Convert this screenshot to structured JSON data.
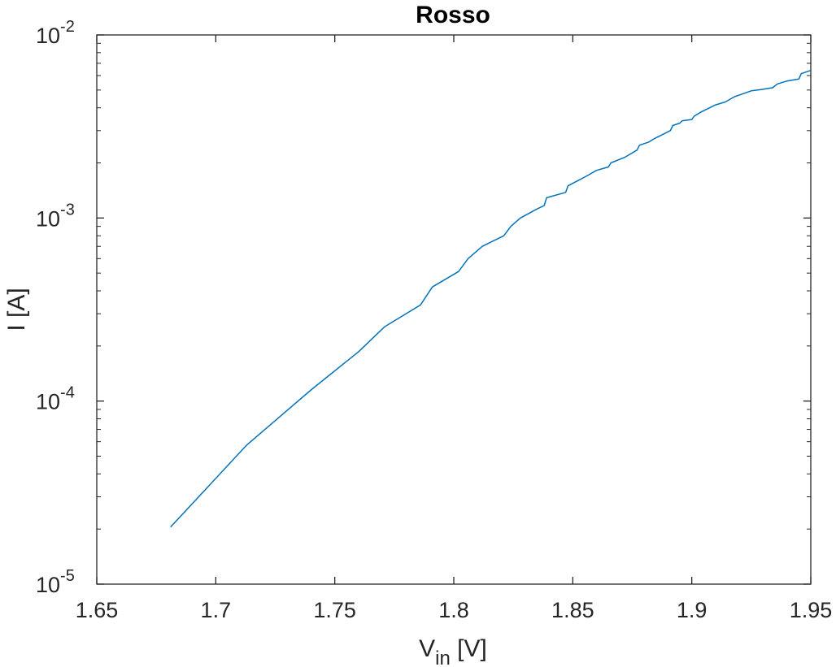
{
  "chart_data": {
    "type": "line",
    "title": "Rosso",
    "xlabel": {
      "main": "V",
      "sub": "in",
      "unit": " [V]"
    },
    "ylabel": "I [A]",
    "xlim": [
      1.65,
      1.95
    ],
    "ylim": [
      1e-05,
      0.01
    ],
    "yscale": "log",
    "grid": false,
    "x_ticks": [
      "1.65",
      "1.7",
      "1.75",
      "1.8",
      "1.85",
      "1.9",
      "1.95"
    ],
    "y_ticks": [
      {
        "base": "10",
        "exp": "-5"
      },
      {
        "base": "10",
        "exp": "-4"
      },
      {
        "base": "10",
        "exp": "-3"
      },
      {
        "base": "10",
        "exp": "-2"
      }
    ],
    "series": [
      {
        "color": "#0072BD",
        "x": [
          1.681,
          1.713,
          1.74,
          1.76,
          1.771,
          1.786,
          1.791,
          1.802,
          1.806,
          1.812,
          1.821,
          1.824,
          1.828,
          1.835,
          1.838,
          1.839,
          1.847,
          1.848,
          1.853,
          1.856,
          1.86,
          1.865,
          1.866,
          1.872,
          1.877,
          1.878,
          1.882,
          1.884,
          1.891,
          1.892,
          1.895,
          1.896,
          1.9,
          1.901,
          1.904,
          1.91,
          1.914,
          1.918,
          1.921,
          1.925,
          1.93,
          1.934,
          1.936,
          1.94,
          1.945,
          1.946,
          1.95
        ],
        "y": [
          2.05e-05,
          5.75e-05,
          0.000115,
          0.000186,
          0.000255,
          0.000335,
          0.00042,
          0.00051,
          0.0006,
          0.0007,
          0.0008,
          0.0009,
          0.001,
          0.00112,
          0.00117,
          0.00129,
          0.00138,
          0.0015,
          0.00162,
          0.0017,
          0.00182,
          0.0019,
          0.002,
          0.00215,
          0.00235,
          0.0025,
          0.0026,
          0.0027,
          0.003,
          0.0032,
          0.0033,
          0.0034,
          0.00345,
          0.0036,
          0.0038,
          0.00415,
          0.0043,
          0.0046,
          0.00475,
          0.00495,
          0.00505,
          0.00515,
          0.0054,
          0.0056,
          0.00575,
          0.00615,
          0.0064
        ]
      }
    ]
  }
}
